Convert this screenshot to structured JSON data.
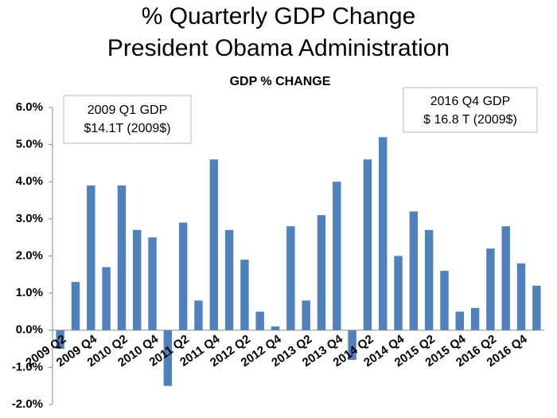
{
  "chart_data": {
    "type": "bar",
    "title": "% Quarterly GDP Change",
    "subtitle": "President Obama Administration",
    "heading": "GDP % CHANGE",
    "annotations": [
      [
        "2009 Q1 GDP",
        "$14.1T (2009$)"
      ],
      [
        "2016 Q4 GDP",
        "$ 16.8 T  (2009$)"
      ]
    ],
    "categories": [
      "2009 Q2",
      null,
      "2009 Q4",
      null,
      "2010 Q2",
      null,
      "2010 Q4",
      null,
      "2011 Q2",
      null,
      "2011 Q4",
      null,
      "2012 Q2",
      null,
      "2012 Q4",
      null,
      "2013 Q2",
      null,
      "2013 Q4",
      null,
      "2014 Q2",
      null,
      "2014 Q4",
      null,
      "2015 Q2",
      null,
      "2015 Q4",
      null,
      "2016 Q2",
      null,
      "2016 Q4",
      null
    ],
    "values": [
      -0.5,
      1.3,
      3.9,
      1.7,
      3.9,
      2.7,
      2.5,
      -1.5,
      2.9,
      0.8,
      4.6,
      2.7,
      1.9,
      0.5,
      0.1,
      2.8,
      0.8,
      3.1,
      4.0,
      -0.8,
      4.6,
      5.2,
      2.0,
      3.2,
      2.7,
      1.6,
      0.5,
      0.6,
      2.2,
      2.8,
      1.8,
      1.2
    ],
    "color": "#4f81bd",
    "ylim": [
      -2,
      6
    ],
    "yticks": [
      {
        "value": -2,
        "label": "-2.0%"
      },
      {
        "value": -1,
        "label": "-1.0%"
      },
      {
        "value": 0,
        "label": "0.0%"
      },
      {
        "value": 1,
        "label": "1.0%"
      },
      {
        "value": 2,
        "label": "2.0%"
      },
      {
        "value": 3,
        "label": "3.0%"
      },
      {
        "value": 4,
        "label": "4.0%"
      },
      {
        "value": 5,
        "label": "5.0%"
      },
      {
        "value": 6,
        "label": "6.0%"
      }
    ],
    "grid": false
  }
}
